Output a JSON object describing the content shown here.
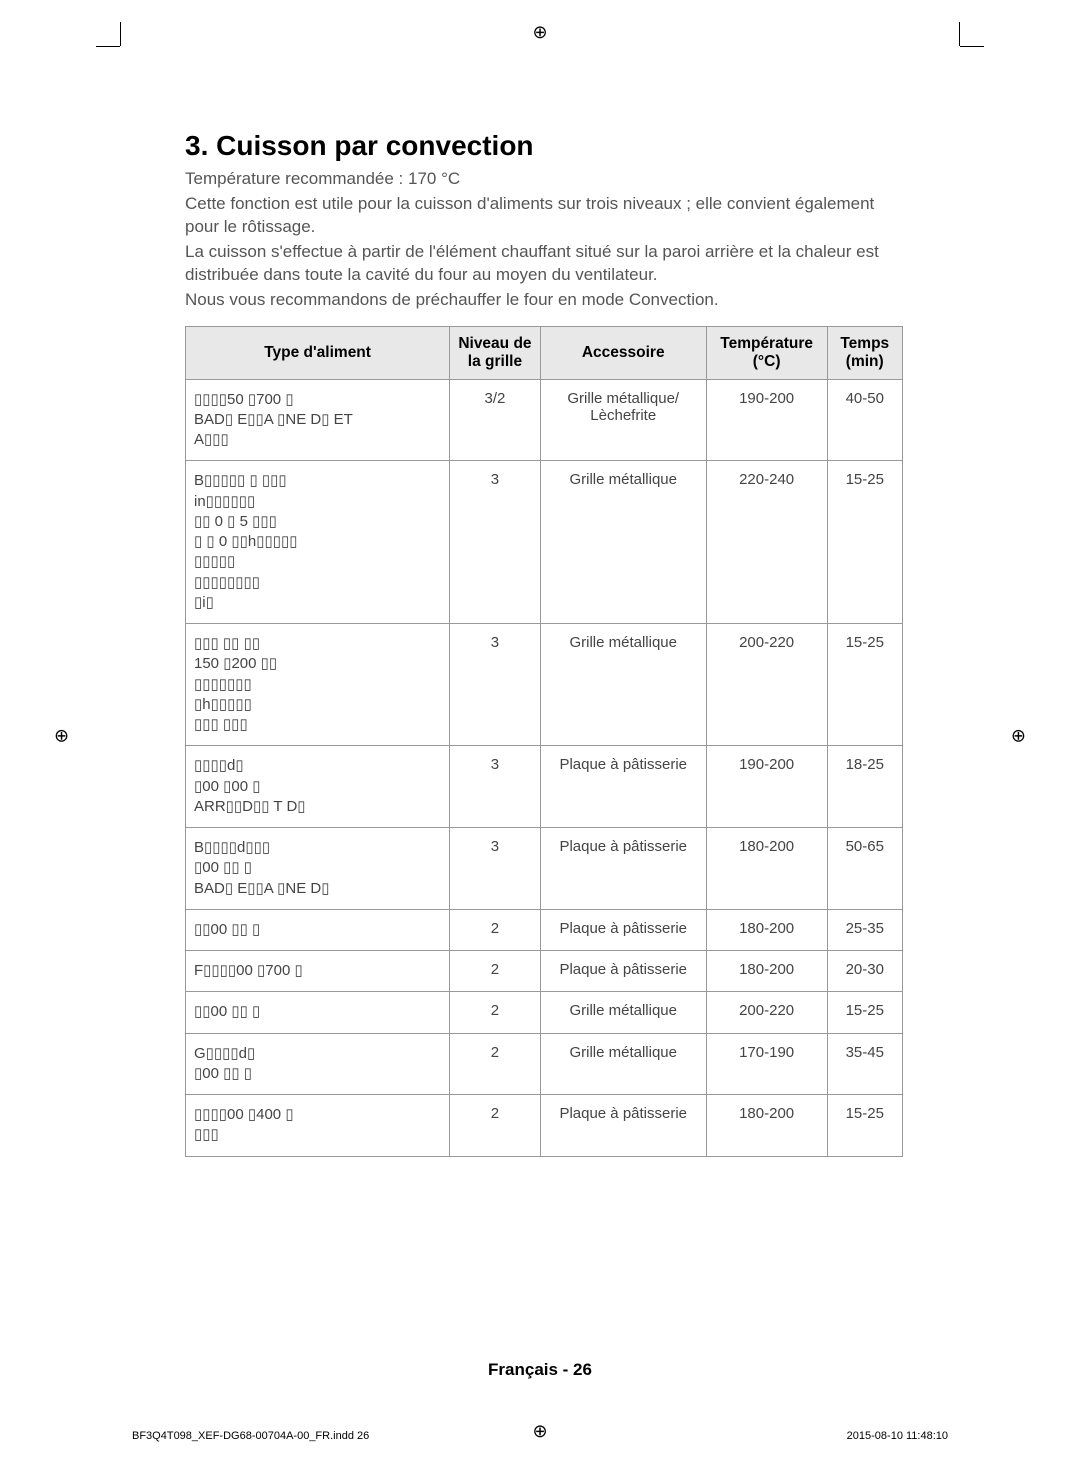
{
  "title": "3. Cuisson par convection",
  "intro": {
    "line1": "Température recommandée : 170 °C",
    "line2": "Cette fonction est utile pour la cuisson d'aliments sur trois niveaux ; elle convient également pour le rôtissage.",
    "line3": "La cuisson s'effectue à partir de l'élément chauffant situé sur la paroi arrière et la chaleur est distribuée dans toute la cavité du four au moyen du ventilateur.",
    "line4": "Nous vous recommandons de préchauffer le four en mode Convection."
  },
  "table": {
    "headers": {
      "food": "Type d'aliment",
      "level": "Niveau de la grille",
      "accessory": "Accessoire",
      "temp": "Température (°C)",
      "time": "Temps (min)"
    },
    "header_bg": "#e8e8e8",
    "border_color": "#999999",
    "rows": [
      {
        "food_html": "▯▯▯▯50 ▯700 ▯<br>BAD▯ E▯▯A ▯NE D▯ ET<br>A▯▯▯",
        "level": "3/2",
        "accessory": "Grille métallique/ Lèchefrite",
        "temp": "190-200",
        "time": "40-50"
      },
      {
        "food_html": "B▯▯▯▯▯ ▯ ▯▯▯<br>in▯▯▯▯▯▯<br>▯▯ 0 ▯ 5 ▯▯▯<br>▯ ▯ 0 ▯▯h▯▯▯▯▯<br>▯▯▯▯▯<br>▯▯▯▯▯▯▯▯<br>▯i▯",
        "level": "3",
        "accessory": "Grille métallique",
        "temp": "220-240",
        "time": "15-25"
      },
      {
        "food_html": "▯▯▯ ▯▯ ▯▯<br>150 ▯200 ▯▯<br>▯▯▯▯▯▯▯<br>▯h▯▯▯▯▯<br>▯▯▯ ▯▯▯",
        "level": "3",
        "accessory": "Grille métallique",
        "temp": "200-220",
        "time": "15-25"
      },
      {
        "food_html": "▯▯▯▯d▯<br>▯00 ▯00 ▯<br>ARR▯▯D▯▯ T D▯",
        "level": "3",
        "accessory": "Plaque à pâtisserie",
        "temp": "190-200",
        "time": "18-25"
      },
      {
        "food_html": "B▯▯▯▯d▯▯▯<br>▯00 ▯▯ ▯<br>BAD▯ E▯▯A ▯NE D▯",
        "level": "3",
        "accessory": "Plaque à pâtisserie",
        "temp": "180-200",
        "time": "50-65"
      },
      {
        "food_html": "▯▯00 ▯▯ ▯",
        "level": "2",
        "accessory": "Plaque à pâtisserie",
        "temp": "180-200",
        "time": "25-35"
      },
      {
        "food_html": "F▯▯▯▯00 ▯700 ▯",
        "level": "2",
        "accessory": "Plaque à pâtisserie",
        "temp": "180-200",
        "time": "20-30"
      },
      {
        "food_html": "▯▯00 ▯▯ ▯",
        "level": "2",
        "accessory": "Grille métallique",
        "temp": "200-220",
        "time": "15-25"
      },
      {
        "food_html": "G▯▯▯▯d▯<br>▯00 ▯▯ ▯",
        "level": "2",
        "accessory": "Grille métallique",
        "temp": "170-190",
        "time": "35-45"
      },
      {
        "food_html": "▯▯▯▯00 ▯400 ▯<br>▯▯▯",
        "level": "2",
        "accessory": "Plaque à pâtisserie",
        "temp": "180-200",
        "time": "15-25"
      }
    ]
  },
  "footer": {
    "page_label": "Français - 26",
    "file": "BF3Q4T098_XEF-DG68-00704A-00_FR.indd   26",
    "date": "2015-08-10   11:48:10"
  },
  "colors": {
    "background": "#ffffff",
    "text_body": "#555555",
    "header_bg": "#e8e8e8"
  }
}
